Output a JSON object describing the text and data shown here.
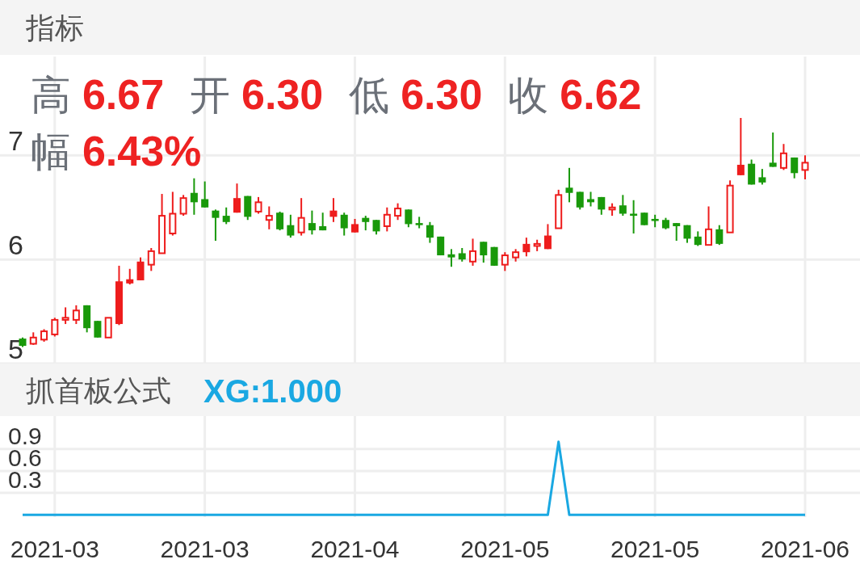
{
  "chart_data": [
    {
      "type": "candlestick",
      "title": "指标",
      "annotations": [
        "高 6.67",
        "开 6.30",
        "低 6.30",
        "收 6.62",
        "幅 6.43%"
      ],
      "categories": [
        null,
        null,
        null,
        "2021-03",
        null,
        null,
        null,
        null,
        null,
        null,
        null,
        null,
        null,
        null,
        null,
        null,
        null,
        "2021-03",
        null,
        null,
        null,
        null,
        null,
        null,
        null,
        null,
        null,
        null,
        null,
        null,
        null,
        "2021-04",
        null,
        null,
        null,
        null,
        null,
        null,
        null,
        null,
        null,
        null,
        null,
        null,
        null,
        "2021-05",
        null,
        null,
        null,
        null,
        null,
        null,
        null,
        null,
        null,
        null,
        null,
        null,
        null,
        "2021-05",
        null,
        null,
        null,
        null,
        null,
        null,
        null,
        null,
        null,
        null,
        null,
        null,
        null,
        "2021-06"
      ],
      "ohlc": [
        [
          5.24,
          5.25,
          5.16,
          5.17
        ],
        [
          5.19,
          5.3,
          5.18,
          5.25
        ],
        [
          5.23,
          5.33,
          5.21,
          5.31
        ],
        [
          5.28,
          5.44,
          5.26,
          5.42
        ],
        [
          5.42,
          5.54,
          5.38,
          5.44
        ],
        [
          5.42,
          5.56,
          5.38,
          5.51
        ],
        [
          5.56,
          5.56,
          5.3,
          5.34
        ],
        [
          5.41,
          5.41,
          5.25,
          5.25
        ],
        [
          5.25,
          5.44,
          5.25,
          5.44
        ],
        [
          5.79,
          5.94,
          5.37,
          5.38
        ],
        [
          5.81,
          5.91,
          5.76,
          5.77
        ],
        [
          5.98,
          6.02,
          5.8,
          5.8
        ],
        [
          5.95,
          6.11,
          5.89,
          6.08
        ],
        [
          6.06,
          6.63,
          6.06,
          6.42
        ],
        [
          6.25,
          6.65,
          6.23,
          6.44
        ],
        [
          6.44,
          6.62,
          6.42,
          6.59
        ],
        [
          6.64,
          6.78,
          6.43,
          6.55
        ],
        [
          6.58,
          6.75,
          6.5,
          6.5
        ],
        [
          6.47,
          6.48,
          6.18,
          6.4
        ],
        [
          6.42,
          6.5,
          6.34,
          6.36
        ],
        [
          6.59,
          6.73,
          6.45,
          6.45
        ],
        [
          6.61,
          6.61,
          6.38,
          6.41
        ],
        [
          6.46,
          6.6,
          6.44,
          6.55
        ],
        [
          6.38,
          6.51,
          6.29,
          6.42
        ],
        [
          6.45,
          6.46,
          6.28,
          6.29
        ],
        [
          6.33,
          6.43,
          6.21,
          6.23
        ],
        [
          6.26,
          6.59,
          6.23,
          6.4
        ],
        [
          6.35,
          6.47,
          6.24,
          6.28
        ],
        [
          6.32,
          6.45,
          6.28,
          6.28
        ],
        [
          6.47,
          6.59,
          6.36,
          6.41
        ],
        [
          6.43,
          6.45,
          6.23,
          6.3
        ],
        [
          6.34,
          6.39,
          6.26,
          6.26
        ],
        [
          6.4,
          6.42,
          6.28,
          6.36
        ],
        [
          6.38,
          6.38,
          6.24,
          6.27
        ],
        [
          6.32,
          6.5,
          6.27,
          6.43
        ],
        [
          6.42,
          6.54,
          6.38,
          6.49
        ],
        [
          6.48,
          6.48,
          6.31,
          6.34
        ],
        [
          6.35,
          6.41,
          6.3,
          6.33
        ],
        [
          6.33,
          6.36,
          6.16,
          6.21
        ],
        [
          6.22,
          6.22,
          6.04,
          6.04
        ],
        [
          6.05,
          6.1,
          5.93,
          6.02
        ],
        [
          6.06,
          6.11,
          5.98,
          6.0
        ],
        [
          5.98,
          6.2,
          5.94,
          6.08
        ],
        [
          6.17,
          6.17,
          5.97,
          6.04
        ],
        [
          6.12,
          6.12,
          5.94,
          5.94
        ],
        [
          5.95,
          6.07,
          5.89,
          6.04
        ],
        [
          6.02,
          6.1,
          5.98,
          6.07
        ],
        [
          6.15,
          6.21,
          6.03,
          6.07
        ],
        [
          6.13,
          6.19,
          6.08,
          6.15
        ],
        [
          6.23,
          6.34,
          6.1,
          6.1
        ],
        [
          6.3,
          6.67,
          6.3,
          6.62
        ],
        [
          6.69,
          6.88,
          6.55,
          6.64
        ],
        [
          6.65,
          6.65,
          6.48,
          6.5
        ],
        [
          6.58,
          6.65,
          6.51,
          6.55
        ],
        [
          6.6,
          6.6,
          6.43,
          6.48
        ],
        [
          6.48,
          6.54,
          6.42,
          6.5
        ],
        [
          6.52,
          6.62,
          6.42,
          6.44
        ],
        [
          6.44,
          6.57,
          6.25,
          6.42
        ],
        [
          6.45,
          6.45,
          6.33,
          6.33
        ],
        [
          6.39,
          6.43,
          6.31,
          6.37
        ],
        [
          6.38,
          6.4,
          6.29,
          6.3
        ],
        [
          6.35,
          6.35,
          6.18,
          6.32
        ],
        [
          6.33,
          6.33,
          6.16,
          6.2
        ],
        [
          6.22,
          6.27,
          6.13,
          6.14
        ],
        [
          6.14,
          6.51,
          6.14,
          6.29
        ],
        [
          6.29,
          6.33,
          6.14,
          6.15
        ],
        [
          6.26,
          6.76,
          6.26,
          6.71
        ],
        [
          6.91,
          7.36,
          6.81,
          6.81
        ],
        [
          6.92,
          6.96,
          6.72,
          6.72
        ],
        [
          6.79,
          6.87,
          6.72,
          6.74
        ],
        [
          6.93,
          7.22,
          6.89,
          6.89
        ],
        [
          6.88,
          7.11,
          6.86,
          7.02
        ],
        [
          6.98,
          6.98,
          6.78,
          6.83
        ],
        [
          6.86,
          7.0,
          6.77,
          6.93
        ]
      ],
      "colors": [
        "#19990a",
        "#ee1c1c",
        "#ee1c1c",
        "#ee1c1c",
        "#ee1c1c",
        "#ee1c1c",
        "#19990a",
        "#19990a",
        "#ee1c1c",
        "#ee1c1c",
        "#ee1c1c",
        "#ee1c1c",
        "#ee1c1c",
        "#ee1c1c",
        "#ee1c1c",
        "#ee1c1c",
        "#19990a",
        "#19990a",
        "#19990a",
        "#19990a",
        "#ee1c1c",
        "#19990a",
        "#ee1c1c",
        "#ee1c1c",
        "#19990a",
        "#19990a",
        "#ee1c1c",
        "#19990a",
        "#19990a",
        "#ee1c1c",
        "#19990a",
        "#ee1c1c",
        "#19990a",
        "#19990a",
        "#ee1c1c",
        "#ee1c1c",
        "#19990a",
        "#19990a",
        "#19990a",
        "#19990a",
        "#19990a",
        "#19990a",
        "#ee1c1c",
        "#19990a",
        "#19990a",
        "#ee1c1c",
        "#ee1c1c",
        "#ee1c1c",
        "#ee1c1c",
        "#ee1c1c",
        "#ee1c1c",
        "#19990a",
        "#19990a",
        "#19990a",
        "#19990a",
        "#ee1c1c",
        "#19990a",
        "#19990a",
        "#19990a",
        "#19990a",
        "#19990a",
        "#19990a",
        "#19990a",
        "#19990a",
        "#ee1c1c",
        "#19990a",
        "#ee1c1c",
        "#ee1c1c",
        "#19990a",
        "#19990a",
        "#19990a",
        "#ee1c1c",
        "#19990a",
        "#ee1c1c"
      ],
      "ylim": [
        5,
        7.95
      ],
      "yticks": [
        5,
        6,
        7
      ],
      "grid": true,
      "tick_labels": "y"
    },
    {
      "type": "line",
      "title": "抓首板公式",
      "annotations": [
        "XG:1.000"
      ],
      "categories": [
        null,
        null,
        null,
        "2021-03",
        null,
        null,
        null,
        null,
        null,
        null,
        null,
        null,
        null,
        null,
        null,
        null,
        null,
        "2021-03",
        null,
        null,
        null,
        null,
        null,
        null,
        null,
        null,
        null,
        null,
        null,
        null,
        null,
        "2021-04",
        null,
        null,
        null,
        null,
        null,
        null,
        null,
        null,
        null,
        null,
        null,
        null,
        null,
        "2021-05",
        null,
        null,
        null,
        null,
        null,
        null,
        null,
        null,
        null,
        null,
        null,
        null,
        null,
        "2021-05",
        null,
        null,
        null,
        null,
        null,
        null,
        null,
        null,
        null,
        null,
        null,
        null,
        null,
        "2021-06"
      ],
      "series": [
        {
          "color": "#1aa8e2",
          "values": [
            0,
            0,
            0,
            0,
            0,
            0,
            0,
            0,
            0,
            0,
            0,
            0,
            0,
            0,
            0,
            0,
            0,
            0,
            0,
            0,
            0,
            0,
            0,
            0,
            0,
            0,
            0,
            0,
            0,
            0,
            0,
            0,
            0,
            0,
            0,
            0,
            0,
            0,
            0,
            0,
            0,
            0,
            0,
            0,
            0,
            0,
            0,
            0,
            0,
            0,
            1,
            0,
            0,
            0,
            0,
            0,
            0,
            0,
            0,
            0,
            0,
            0,
            0,
            0,
            0,
            0,
            0,
            0,
            0,
            0,
            0,
            0,
            0,
            0
          ]
        }
      ],
      "ylim": [
        -0.03,
        1.35
      ],
      "yticks": [
        0.3,
        0.6,
        0.9
      ],
      "grid": true
    }
  ]
}
